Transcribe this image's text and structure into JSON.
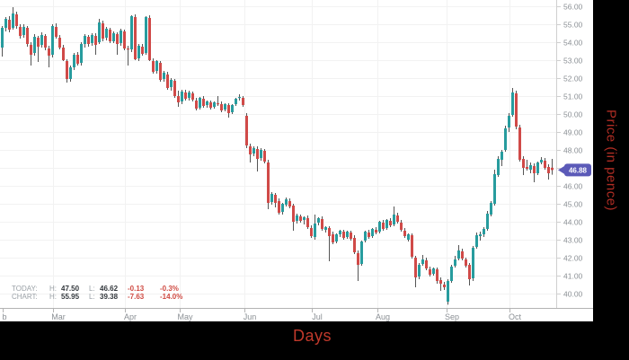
{
  "chart_data": {
    "type": "candlestick",
    "title": "",
    "xlabel": "Days",
    "ylabel": "Price (in pence)",
    "y_axis": {
      "min": 40,
      "max": 56,
      "step": 1,
      "tick_labels": [
        "56.00",
        "55.00",
        "54.00",
        "53.00",
        "52.00",
        "51.00",
        "50.00",
        "49.00",
        "48.00",
        "47.00",
        "46.00",
        "45.00",
        "44.00",
        "43.00",
        "42.00",
        "41.00",
        "40.00"
      ]
    },
    "x_axis": {
      "tick_labels": [
        "b",
        "Mar",
        "Apr",
        "May",
        "Jun",
        "Jul",
        "Aug",
        "Sep",
        "Oct"
      ],
      "tick_x": [
        3,
        59,
        139,
        200,
        272,
        347,
        420,
        497,
        567
      ]
    },
    "current_price_label": "46.88",
    "current_price": 46.88,
    "legend": {
      "today": {
        "label": "TODAY:",
        "h_label": "H:",
        "high": "47.50",
        "l_label": "L:",
        "low": "46.62",
        "change": "-0.13",
        "change_pct": "-0.3%"
      },
      "chart": {
        "label": "CHART:",
        "h_label": "H:",
        "high": "55.95",
        "l_label": "L:",
        "low": "39.38",
        "change": "-7.63",
        "change_pct": "-14.0%"
      }
    },
    "colors": {
      "up": "#279c9e",
      "down": "#d04a48",
      "wick": "#555555",
      "grid": "#f2f2f2",
      "axis_y": "#cfcfcf",
      "axis_x": "#b3b3b3",
      "tick_text": "#8b9095",
      "badge": "#5b5ab8",
      "badge_text": "#ffffff",
      "accent_red": "#c0392b"
    },
    "grid": true,
    "legend_position": "bottom-left",
    "candles_format": [
      "x_px",
      "open",
      "high",
      "low",
      "close"
    ],
    "candles": [
      [
        2,
        53.7,
        54.9,
        53.2,
        54.8
      ],
      [
        6,
        54.8,
        55.4,
        54.6,
        55.3
      ],
      [
        10,
        55.25,
        55.45,
        54.55,
        54.7
      ],
      [
        14,
        54.8,
        55.95,
        54.7,
        55.6
      ],
      [
        18,
        55.55,
        55.7,
        54.75,
        54.9
      ],
      [
        22,
        54.85,
        55.0,
        54.2,
        54.35
      ],
      [
        26,
        54.4,
        55.0,
        54.25,
        54.85
      ],
      [
        30,
        54.8,
        54.9,
        53.75,
        53.9
      ],
      [
        34,
        53.85,
        54.0,
        52.7,
        53.3
      ],
      [
        38,
        53.4,
        54.45,
        53.25,
        54.3
      ],
      [
        42,
        54.25,
        54.35,
        52.9,
        53.75
      ],
      [
        46,
        53.85,
        54.55,
        53.7,
        54.4
      ],
      [
        50,
        54.35,
        54.45,
        53.55,
        53.7
      ],
      [
        54,
        53.65,
        53.8,
        52.6,
        53.25
      ],
      [
        58,
        53.3,
        55.0,
        53.15,
        54.9
      ],
      [
        62,
        54.85,
        55.05,
        54.2,
        54.3
      ],
      [
        66,
        54.25,
        54.4,
        53.6,
        53.7
      ],
      [
        70,
        53.7,
        53.85,
        52.95,
        53.0
      ],
      [
        74,
        52.95,
        53.05,
        51.75,
        51.95
      ],
      [
        78,
        51.95,
        52.7,
        51.8,
        52.6
      ],
      [
        82,
        52.6,
        53.4,
        52.45,
        53.3
      ],
      [
        86,
        53.3,
        53.45,
        52.7,
        52.8
      ],
      [
        90,
        52.85,
        54.0,
        52.7,
        53.9
      ],
      [
        94,
        53.9,
        54.45,
        53.7,
        54.35
      ],
      [
        98,
        54.3,
        54.4,
        53.75,
        53.9
      ],
      [
        102,
        53.95,
        54.5,
        53.8,
        54.4
      ],
      [
        106,
        54.35,
        54.5,
        53.3,
        53.85
      ],
      [
        110,
        54.0,
        55.3,
        53.9,
        55.1
      ],
      [
        114,
        55.05,
        55.2,
        54.05,
        54.2
      ],
      [
        118,
        54.25,
        54.85,
        54.1,
        54.75
      ],
      [
        122,
        54.7,
        54.8,
        53.95,
        54.05
      ],
      [
        126,
        54.05,
        54.6,
        53.95,
        54.5
      ],
      [
        130,
        54.45,
        54.55,
        53.3,
        53.9
      ],
      [
        134,
        53.95,
        54.75,
        53.8,
        54.65
      ],
      [
        138,
        54.6,
        54.7,
        53.55,
        53.65
      ],
      [
        142,
        53.65,
        53.8,
        52.7,
        53.6
      ],
      [
        146,
        53.6,
        55.5,
        53.45,
        55.45
      ],
      [
        150,
        55.4,
        55.55,
        53.0,
        53.05
      ],
      [
        154,
        53.1,
        53.9,
        52.95,
        53.8
      ],
      [
        158,
        53.75,
        53.9,
        53.25,
        53.35
      ],
      [
        162,
        53.4,
        55.45,
        53.3,
        55.4
      ],
      [
        166,
        55.35,
        55.5,
        52.95,
        53.0
      ],
      [
        170,
        52.95,
        53.1,
        52.25,
        52.35
      ],
      [
        174,
        52.4,
        53.0,
        52.25,
        52.95
      ],
      [
        178,
        52.85,
        52.95,
        51.8,
        51.9
      ],
      [
        182,
        51.95,
        52.4,
        51.8,
        52.3
      ],
      [
        186,
        52.2,
        52.35,
        51.35,
        51.45
      ],
      [
        190,
        51.5,
        52.0,
        51.3,
        51.9
      ],
      [
        194,
        51.85,
        51.95,
        50.9,
        51.0
      ],
      [
        198,
        51.0,
        51.3,
        50.4,
        50.65
      ],
      [
        202,
        50.7,
        51.35,
        50.55,
        51.25
      ],
      [
        206,
        51.2,
        51.35,
        50.75,
        50.85
      ],
      [
        210,
        50.9,
        51.3,
        50.75,
        51.2
      ],
      [
        214,
        51.15,
        51.25,
        50.7,
        50.8
      ],
      [
        218,
        50.75,
        50.9,
        50.2,
        50.3
      ],
      [
        222,
        50.35,
        50.95,
        50.25,
        50.9
      ],
      [
        226,
        50.85,
        51.0,
        50.35,
        50.45
      ],
      [
        230,
        50.5,
        50.75,
        50.35,
        50.7
      ],
      [
        234,
        50.65,
        50.75,
        50.25,
        50.35
      ],
      [
        238,
        50.4,
        50.7,
        50.3,
        50.65
      ],
      [
        242,
        50.6,
        51.0,
        50.45,
        50.55
      ],
      [
        246,
        50.55,
        50.7,
        50.1,
        50.2
      ],
      [
        250,
        50.25,
        50.6,
        50.15,
        50.55
      ],
      [
        254,
        50.5,
        50.6,
        49.8,
        50.05
      ],
      [
        258,
        50.1,
        50.55,
        50.0,
        50.5
      ],
      [
        262,
        50.55,
        50.9,
        50.45,
        50.85
      ],
      [
        266,
        50.9,
        51.1,
        50.75,
        50.95
      ],
      [
        270,
        50.9,
        51.0,
        50.4,
        50.5
      ],
      [
        274,
        49.9,
        50.05,
        48.1,
        48.25
      ],
      [
        278,
        48.2,
        48.35,
        47.3,
        47.75
      ],
      [
        282,
        47.8,
        48.2,
        47.65,
        48.1
      ],
      [
        286,
        48.05,
        48.2,
        46.8,
        47.5
      ],
      [
        290,
        47.55,
        48.1,
        47.4,
        48.0
      ],
      [
        294,
        47.95,
        48.05,
        47.25,
        47.35
      ],
      [
        298,
        47.3,
        47.45,
        44.7,
        45.05
      ],
      [
        302,
        45.1,
        45.65,
        44.95,
        45.55
      ],
      [
        306,
        45.5,
        45.6,
        44.8,
        45.05
      ],
      [
        310,
        45.15,
        45.3,
        44.4,
        44.5
      ],
      [
        314,
        44.55,
        45.05,
        44.4,
        45.0
      ],
      [
        318,
        44.95,
        45.35,
        44.85,
        45.25
      ],
      [
        322,
        45.15,
        45.3,
        44.75,
        44.85
      ],
      [
        326,
        44.9,
        45.0,
        43.5,
        44.0
      ],
      [
        330,
        44.05,
        44.45,
        43.9,
        44.35
      ],
      [
        334,
        44.3,
        44.4,
        43.95,
        44.05
      ],
      [
        338,
        44.1,
        44.3,
        43.85,
        44.25
      ],
      [
        342,
        44.2,
        44.35,
        43.6,
        43.7
      ],
      [
        346,
        43.65,
        43.8,
        43.1,
        43.2
      ],
      [
        350,
        43.15,
        44.4,
        43.0,
        43.9
      ],
      [
        354,
        43.95,
        44.25,
        43.8,
        44.2
      ],
      [
        358,
        44.15,
        44.3,
        43.5,
        43.6
      ],
      [
        362,
        43.55,
        43.75,
        43.4,
        43.7
      ],
      [
        366,
        43.65,
        43.75,
        41.8,
        43.2
      ],
      [
        370,
        43.3,
        43.45,
        42.75,
        42.85
      ],
      [
        374,
        42.9,
        43.35,
        42.8,
        43.3
      ],
      [
        378,
        43.3,
        43.55,
        43.15,
        43.5
      ],
      [
        382,
        43.45,
        43.55,
        43.0,
        43.1
      ],
      [
        386,
        43.15,
        43.5,
        43.05,
        43.45
      ],
      [
        390,
        43.4,
        43.5,
        42.95,
        43.05
      ],
      [
        394,
        43.1,
        43.25,
        42.2,
        42.3
      ],
      [
        398,
        42.25,
        42.4,
        40.7,
        41.6
      ],
      [
        402,
        41.65,
        42.95,
        41.55,
        42.9
      ],
      [
        406,
        42.95,
        43.5,
        42.85,
        43.45
      ],
      [
        410,
        43.4,
        43.55,
        43.05,
        43.15
      ],
      [
        414,
        43.2,
        43.65,
        43.1,
        43.6
      ],
      [
        418,
        43.55,
        43.7,
        43.3,
        43.4
      ],
      [
        422,
        43.45,
        44.05,
        43.35,
        44.0
      ],
      [
        426,
        43.95,
        44.1,
        43.5,
        43.6
      ],
      [
        430,
        43.65,
        44.15,
        43.55,
        44.1
      ],
      [
        434,
        44.05,
        44.2,
        43.7,
        43.8
      ],
      [
        438,
        43.85,
        44.85,
        43.75,
        44.4
      ],
      [
        442,
        44.35,
        44.5,
        43.9,
        44.0
      ],
      [
        446,
        43.95,
        44.1,
        43.45,
        43.55
      ],
      [
        450,
        43.5,
        43.65,
        43.1,
        43.2
      ],
      [
        454,
        43.0,
        43.35,
        42.9,
        43.3
      ],
      [
        458,
        43.25,
        43.35,
        41.95,
        42.05
      ],
      [
        462,
        42.0,
        42.1,
        40.35,
        40.9
      ],
      [
        466,
        40.95,
        41.7,
        40.8,
        41.6
      ],
      [
        470,
        41.65,
        42.15,
        41.55,
        41.9
      ],
      [
        474,
        41.85,
        42.0,
        41.3,
        41.4
      ],
      [
        478,
        41.35,
        41.5,
        40.95,
        41.05
      ],
      [
        482,
        41.1,
        41.45,
        41.0,
        41.4
      ],
      [
        486,
        41.35,
        41.45,
        40.55,
        40.7
      ],
      [
        490,
        40.75,
        40.9,
        40.15,
        40.55
      ],
      [
        494,
        40.5,
        40.65,
        40.2,
        40.35
      ],
      [
        498,
        39.55,
        40.8,
        39.38,
        40.7
      ],
      [
        502,
        40.7,
        41.6,
        40.6,
        41.5
      ],
      [
        506,
        41.55,
        42.1,
        41.45,
        41.9
      ],
      [
        510,
        41.95,
        42.7,
        41.85,
        42.4
      ],
      [
        514,
        42.35,
        42.5,
        41.85,
        41.95
      ],
      [
        518,
        41.9,
        42.0,
        41.45,
        41.55
      ],
      [
        522,
        41.6,
        41.7,
        40.45,
        40.8
      ],
      [
        526,
        40.85,
        42.65,
        40.7,
        42.55
      ],
      [
        530,
        42.6,
        43.4,
        42.5,
        43.25
      ],
      [
        534,
        43.2,
        43.45,
        42.95,
        43.3
      ],
      [
        538,
        43.3,
        43.7,
        43.15,
        43.6
      ],
      [
        542,
        43.6,
        44.6,
        43.5,
        44.45
      ],
      [
        546,
        44.4,
        45.15,
        44.3,
        45.05
      ],
      [
        550,
        45.0,
        46.9,
        44.9,
        46.65
      ],
      [
        554,
        46.6,
        47.65,
        46.5,
        47.5
      ],
      [
        558,
        47.45,
        48.0,
        47.1,
        47.9
      ],
      [
        562,
        48.0,
        49.35,
        47.9,
        49.2
      ],
      [
        566,
        49.25,
        50.05,
        49.0,
        49.9
      ],
      [
        570,
        49.95,
        51.45,
        49.85,
        51.2
      ],
      [
        574,
        51.15,
        51.3,
        49.15,
        49.3
      ],
      [
        578,
        49.25,
        49.4,
        47.35,
        47.45
      ],
      [
        582,
        47.5,
        47.65,
        46.6,
        47.0
      ],
      [
        586,
        47.05,
        47.45,
        46.85,
        46.95
      ],
      [
        590,
        46.9,
        47.3,
        46.7,
        47.15
      ],
      [
        594,
        47.1,
        47.25,
        46.2,
        46.7
      ],
      [
        598,
        46.7,
        47.35,
        46.6,
        47.3
      ],
      [
        602,
        47.3,
        47.6,
        47.2,
        47.45
      ],
      [
        606,
        47.4,
        47.55,
        46.9,
        47.0
      ],
      [
        610,
        47.05,
        47.2,
        46.35,
        46.7
      ],
      [
        614,
        47.01,
        47.5,
        46.62,
        46.88
      ]
    ]
  }
}
